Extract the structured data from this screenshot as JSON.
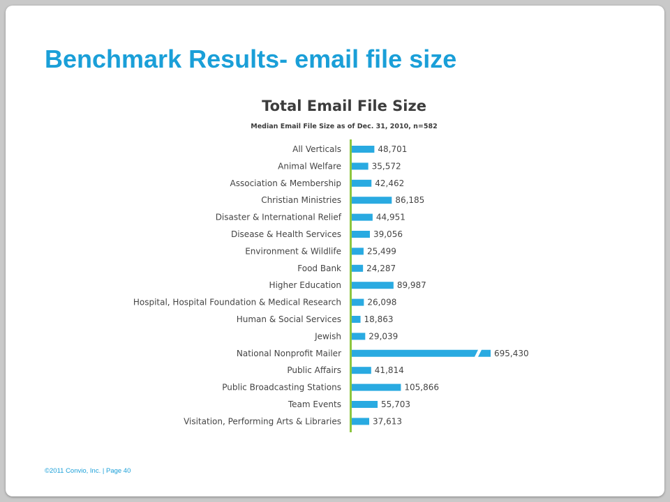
{
  "slide": {
    "title": "Benchmark Results- email file size",
    "footer": "©2011 Convio, Inc. | Page  40"
  },
  "colors": {
    "title": "#1a9fd8",
    "bar": "#29aae1",
    "axis": "#8dc63f",
    "text": "#444444"
  },
  "chart_data": {
    "type": "bar",
    "orientation": "horizontal",
    "title": "Total Email File Size",
    "subtitle": "Median Email File Size as of Dec. 31, 2010, n=582",
    "categories": [
      "All Verticals",
      "Animal Welfare",
      "Association & Membership",
      "Christian Ministries",
      "Disaster & International  Relief",
      "Disease & Health Services",
      "Environment  & Wildlife",
      "Food Bank",
      "Higher Education",
      "Hospital, Hospital Foundation  & Medical Research",
      "Human & Social Services",
      "Jewish",
      "National Nonprofit Mailer",
      "Public Affairs",
      "Public Broadcasting Stations",
      "Team Events",
      "Visitation, Performing Arts & Libraries"
    ],
    "values": [
      48701,
      35572,
      42462,
      86185,
      44951,
      39056,
      25499,
      24287,
      89987,
      26098,
      18863,
      29039,
      695430,
      41814,
      105866,
      55703,
      37613
    ],
    "value_labels": [
      "48,701",
      "35,572",
      "42,462",
      "86,185",
      "44,951",
      "39,056",
      "25,499",
      "24,287",
      "89,987",
      "26,098",
      "18,863",
      "29,039",
      "695,430",
      "41,814",
      "105,866",
      "55,703",
      "37,613"
    ],
    "axis_break": true,
    "broken_bar_index": 12,
    "gridlines": false,
    "legend": "none"
  }
}
